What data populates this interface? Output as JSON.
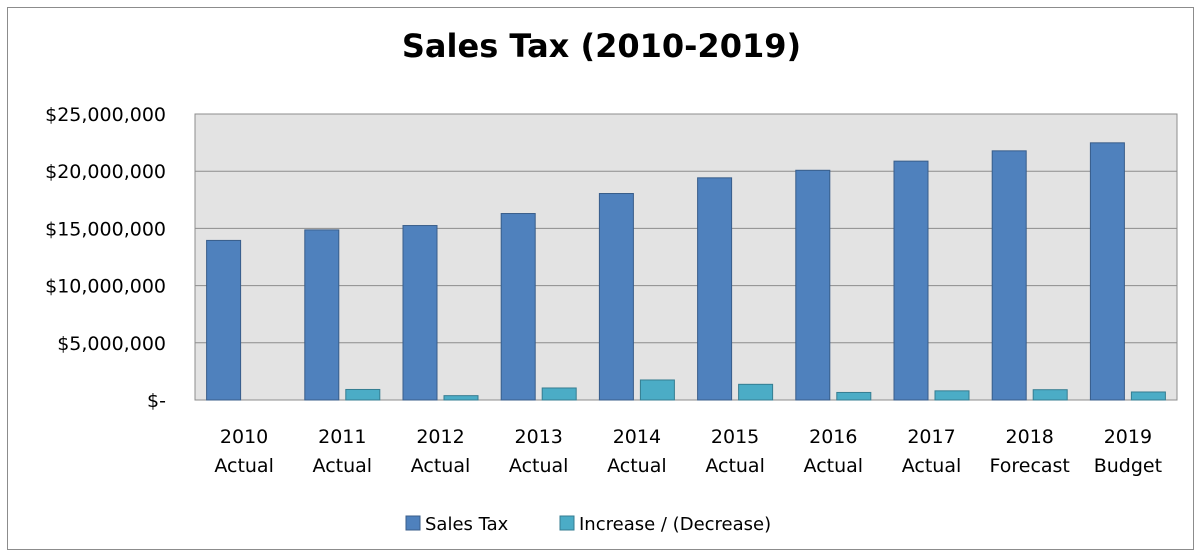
{
  "chart_data": {
    "type": "bar",
    "title": "Sales Tax (2010-2019)",
    "categories": [
      [
        "2010",
        "Actual"
      ],
      [
        "2011",
        "Actual"
      ],
      [
        "2012",
        "Actual"
      ],
      [
        "2013",
        "Actual"
      ],
      [
        "2014",
        "Actual"
      ],
      [
        "2015",
        "Actual"
      ],
      [
        "2016",
        "Actual"
      ],
      [
        "2017",
        "Actual"
      ],
      [
        "2018",
        "Forecast"
      ],
      [
        "2019",
        "Budget"
      ]
    ],
    "series": [
      {
        "name": "Sales Tax",
        "color": "#4f81bd",
        "values": [
          13950000,
          14870000,
          15250000,
          16300000,
          18050000,
          19420000,
          20080000,
          20880000,
          21780000,
          22480000
        ]
      },
      {
        "name": "Increase / (Decrease)",
        "color": "#4bacc6",
        "values": [
          0,
          920000,
          380000,
          1050000,
          1750000,
          1370000,
          660000,
          800000,
          900000,
          700000
        ]
      }
    ],
    "y_ticks": [
      "$-",
      "$5,000,000",
      "$10,000,000",
      "$15,000,000",
      "$20,000,000",
      "$25,000,000"
    ],
    "ylim": [
      0,
      25000000
    ],
    "grid": true,
    "plot_background": "#e3e3e3",
    "legend_position": "bottom"
  }
}
